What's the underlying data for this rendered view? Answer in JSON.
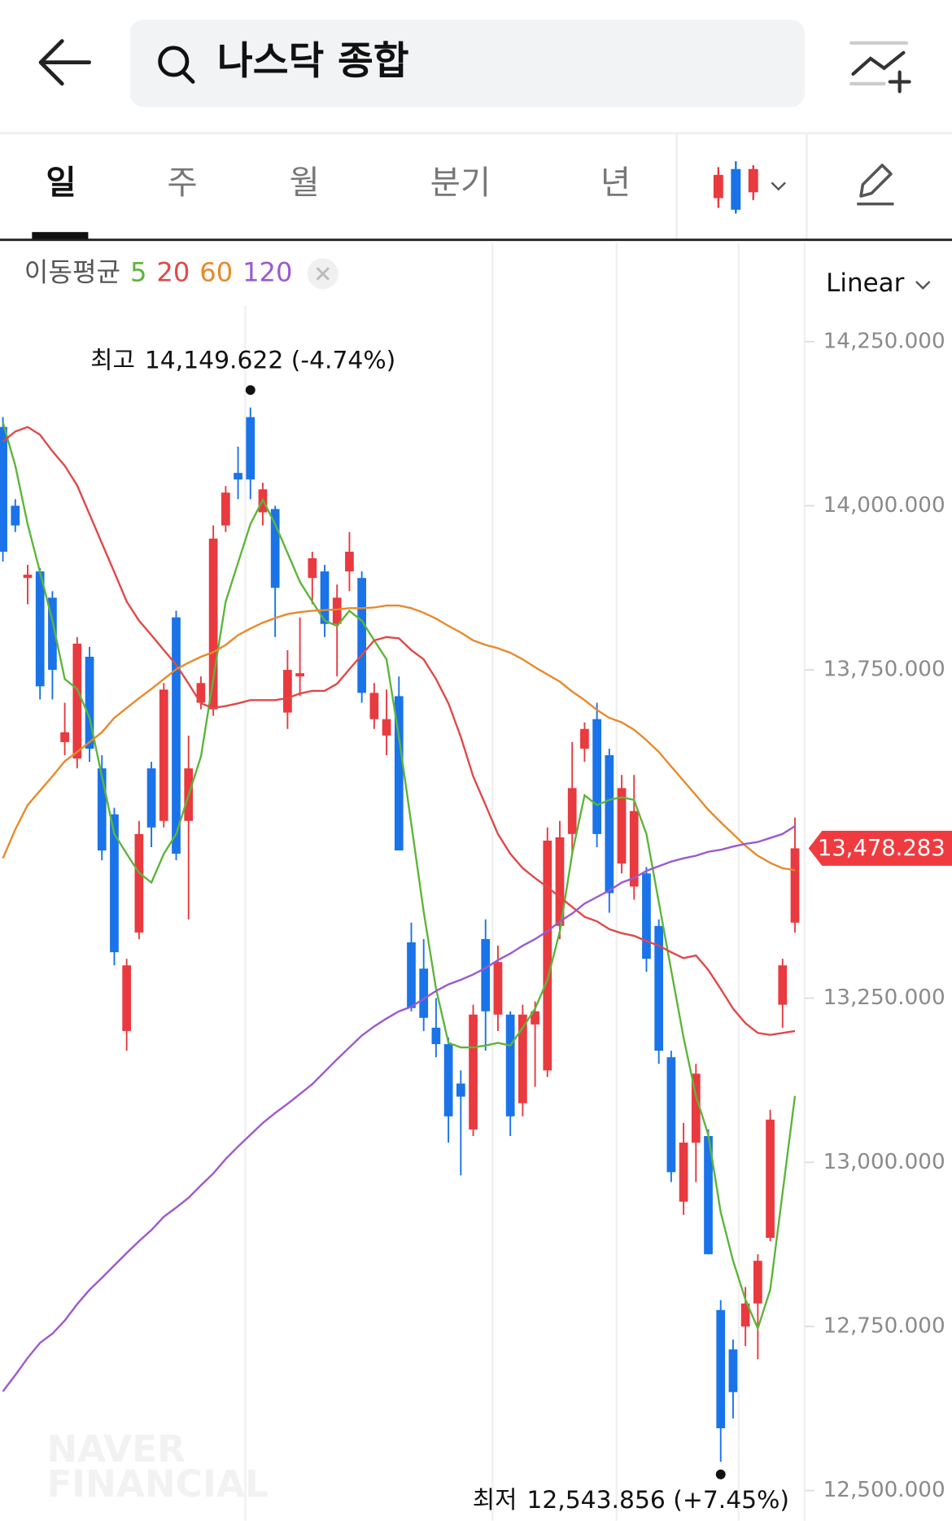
{
  "nav": {
    "search": "나스닥 종합",
    "tabs": [
      "일",
      "주",
      "월",
      "분기",
      "년"
    ]
  },
  "chart_data": {
    "type": "candlestick",
    "legend_title": "이동평균",
    "scale": "Linear",
    "watermark": [
      "NAVER",
      "FINANCIAL"
    ],
    "up_color": "#e83a3f",
    "down_color": "#1a73e8",
    "ylim": [
      12454.2,
      14400.6
    ],
    "yticks": [
      {
        "value": 14250,
        "label": "14,250.000"
      },
      {
        "value": 14000,
        "label": "14,000.000"
      },
      {
        "value": 13750,
        "label": "13,750.000"
      },
      {
        "value": 13250,
        "label": "13,250.000"
      },
      {
        "value": 13000,
        "label": "13,000.000"
      },
      {
        "value": 12750,
        "label": "12,750.000"
      },
      {
        "value": 12500,
        "label": "12,500.000"
      }
    ],
    "last_price": {
      "value": 13478.283,
      "label": "13,478.283"
    },
    "annotations": [
      {
        "label": "최고",
        "text": "14,149.622 (-4.74%)"
      },
      {
        "label": "최저",
        "text": "12,543.856 (+7.45%)"
      }
    ],
    "open": [
      14120,
      14000,
      13890,
      13900,
      13860,
      13640,
      13615,
      13770,
      13600,
      13530,
      13200,
      13350,
      13600,
      13520,
      13830,
      13520,
      13700,
      13690,
      13970,
      14050,
      14135,
      13990,
      13995,
      13685,
      13740,
      13890,
      13900,
      13820,
      13900,
      13890,
      13675,
      13650,
      13710,
      13335,
      13295,
      13205,
      13180,
      13120,
      13050,
      13340,
      13225,
      13225,
      13090,
      13210,
      13140,
      13360,
      13500,
      13630,
      13675,
      13620,
      13455,
      13420,
      13440,
      13360,
      13160,
      12940,
      13030,
      13040,
      12775,
      12715,
      12750,
      12785,
      12885,
      13240,
      13365
    ],
    "high": [
      14135,
      14010,
      13910,
      13905,
      13870,
      13700,
      13800,
      13785,
      13620,
      13540,
      13310,
      13520,
      13610,
      13730,
      13840,
      13650,
      13740,
      13970,
      14030,
      14090,
      14149.622,
      14035,
      14000,
      13780,
      13830,
      13930,
      13910,
      13880,
      13960,
      13900,
      13730,
      13720,
      13740,
      13365,
      13340,
      13250,
      13190,
      13140,
      13240,
      13370,
      13330,
      13230,
      13240,
      13245,
      13510,
      13520,
      13640,
      13670,
      13700,
      13630,
      13590,
      13590,
      13450,
      13370,
      13170,
      13060,
      13150,
      13050,
      12790,
      12730,
      12810,
      12860,
      13080,
      13310,
      13525
    ],
    "low": [
      13915,
      13960,
      13850,
      13705,
      13705,
      13620,
      13600,
      13610,
      13460,
      13300,
      13170,
      13340,
      13480,
      13510,
      13460,
      13370,
      13690,
      13680,
      13960,
      14010,
      14010,
      13970,
      13800,
      13660,
      13710,
      13850,
      13800,
      13740,
      13870,
      13700,
      13660,
      13620,
      13475,
      13230,
      13200,
      13160,
      13030,
      12980,
      13040,
      13170,
      13200,
      13040,
      13070,
      13115,
      13130,
      13340,
      13470,
      13610,
      13480,
      13380,
      13440,
      13400,
      13290,
      13150,
      12970,
      12920,
      12970,
      12860,
      12543.856,
      12610,
      12720,
      12700,
      12880,
      13205,
      13350
    ],
    "close": [
      13930,
      13970,
      13895,
      13725,
      13750,
      13655,
      13790,
      13630,
      13475,
      13320,
      13300,
      13500,
      13510,
      13720,
      13470,
      13600,
      13730,
      13950,
      14020,
      14040,
      14040,
      14025,
      13875,
      13750,
      13745,
      13920,
      13820,
      13860,
      13930,
      13715,
      13715,
      13675,
      13475,
      13235,
      13220,
      13180,
      13070,
      13100,
      13225,
      13230,
      13305,
      13070,
      13225,
      13230,
      13490,
      13495,
      13570,
      13660,
      13500,
      13410,
      13570,
      13535,
      13310,
      13170,
      12985,
      13030,
      13135,
      12860,
      12595,
      12650,
      12785,
      12850,
      13065,
      13300,
      13478.283
    ],
    "series": [
      {
        "name": "5",
        "color": "#5db53a",
        "values": [
          14127,
          14061,
          13972,
          13899,
          13825,
          13736,
          13721,
          13677,
          13588,
          13500,
          13470,
          13441,
          13426,
          13470,
          13500,
          13559,
          13618,
          13736,
          13854,
          13913,
          13972,
          14009,
          13972,
          13928,
          13884,
          13854,
          13825,
          13817,
          13840,
          13825,
          13795,
          13766,
          13648,
          13515,
          13382,
          13264,
          13182,
          13175,
          13175,
          13178,
          13182,
          13178,
          13205,
          13234,
          13278,
          13352,
          13470,
          13559,
          13544,
          13552,
          13556,
          13552,
          13500,
          13396,
          13293,
          13190,
          13101,
          13042,
          12924,
          12850,
          12791,
          12747,
          12806,
          12953,
          13101
        ]
      },
      {
        "name": "20",
        "color": "#e04848",
        "values": [
          14098,
          14113,
          14120,
          14108,
          14083,
          14061,
          14031,
          13987,
          13943,
          13899,
          13854,
          13825,
          13803,
          13780,
          13758,
          13729,
          13699,
          13692,
          13695,
          13699,
          13704,
          13704,
          13704,
          13707,
          13714,
          13718,
          13718,
          13729,
          13751,
          13773,
          13795,
          13800,
          13798,
          13780,
          13766,
          13736,
          13699,
          13648,
          13588,
          13544,
          13500,
          13470,
          13448,
          13433,
          13419,
          13404,
          13389,
          13374,
          13367,
          13355,
          13349,
          13345,
          13337,
          13330,
          13320,
          13311,
          13315,
          13293,
          13264,
          13234,
          13212,
          13197,
          13194,
          13197,
          13200
        ]
      },
      {
        "name": "60",
        "color": "#e8892a",
        "values": [
          13463,
          13507,
          13544,
          13566,
          13588,
          13611,
          13625,
          13640,
          13655,
          13677,
          13692,
          13707,
          13721,
          13736,
          13751,
          13761,
          13770,
          13777,
          13788,
          13803,
          13813,
          13822,
          13829,
          13835,
          13838,
          13840,
          13841,
          13842,
          13844,
          13844,
          13845,
          13848,
          13848,
          13844,
          13837,
          13828,
          13817,
          13807,
          13795,
          13788,
          13783,
          13776,
          13766,
          13754,
          13743,
          13732,
          13717,
          13704,
          13689,
          13677,
          13670,
          13659,
          13643,
          13625,
          13603,
          13581,
          13559,
          13537,
          13518,
          13500,
          13482,
          13467,
          13456,
          13448,
          13445
        ]
      },
      {
        "name": "120",
        "color": "#9b59d0",
        "values": [
          12651,
          12676,
          12702,
          12725,
          12739,
          12759,
          12784,
          12806,
          12824,
          12843,
          12862,
          12880,
          12897,
          12917,
          12931,
          12946,
          12965,
          12983,
          13005,
          13024,
          13042,
          13060,
          13075,
          13089,
          13104,
          13119,
          13138,
          13157,
          13175,
          13193,
          13207,
          13219,
          13230,
          13237,
          13249,
          13261,
          13271,
          13278,
          13286,
          13296,
          13308,
          13318,
          13330,
          13340,
          13352,
          13367,
          13379,
          13394,
          13404,
          13414,
          13426,
          13433,
          13444,
          13451,
          13458,
          13463,
          13467,
          13473,
          13476,
          13481,
          13485,
          13488,
          13494,
          13500,
          13512
        ]
      }
    ]
  }
}
